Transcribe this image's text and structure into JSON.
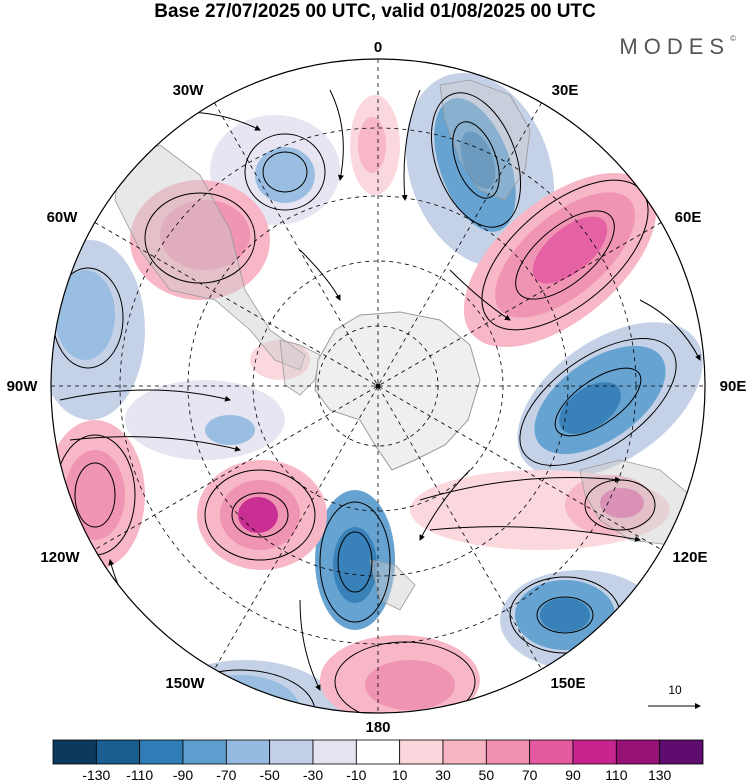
{
  "title": "Base 27/07/2025 00 UTC, valid 01/08/2025 00 UTC",
  "brand": "MODES",
  "brand_mark": "©",
  "longitude_labels": {
    "top": "0",
    "upper_left": "30W",
    "upper_right": "30E",
    "left_upper": "60W",
    "right_upper": "60E",
    "left": "90W",
    "right": "90E",
    "left_lower": "120W",
    "right_lower": "120E",
    "bottom_left": "150W",
    "bottom_right": "150E",
    "bottom": "180"
  },
  "reference_vector_label": "10",
  "colorbar": {
    "colors": [
      "#0d3a5c",
      "#1a5e8f",
      "#2f7cb6",
      "#5e9fcf",
      "#95bbe0",
      "#c2cfe6",
      "#e6e4f1",
      "#ffffff",
      "#fbd6dc",
      "#f7b4c3",
      "#f08fb0",
      "#e35aa0",
      "#c7248d",
      "#971277",
      "#5e0c6e"
    ],
    "tick_labels": [
      "-130",
      "-110",
      "-90",
      "-70",
      "-50",
      "-30",
      "-10",
      "10",
      "30",
      "50",
      "70",
      "90",
      "110",
      "130"
    ]
  },
  "colors": {
    "land_gray": "#ebebeb",
    "coast": "#9a9a9a",
    "antarctica": "#efefef"
  }
}
